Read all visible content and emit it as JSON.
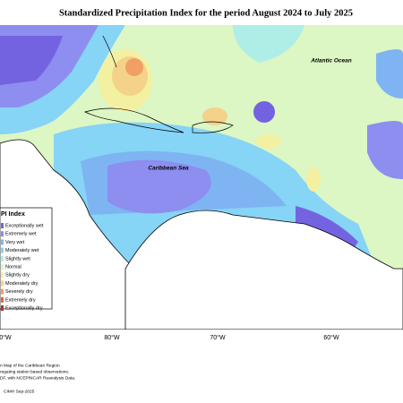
{
  "title": "Standardized Precipitation Index for the period August 2024 to July 2025",
  "map_labels": [
    "Atlantic Ocean",
    "Caribbean Sea"
  ],
  "longitude_labels": [
    "0°W",
    "80°W",
    "70°W",
    "60°W"
  ],
  "legend": {
    "title": "PI Index",
    "items": [
      {
        "name": "Exceptionally wet",
        "color": "#7463e0"
      },
      {
        "name": "Extremely wet",
        "color": "#8d8ef0"
      },
      {
        "name": "Very wet",
        "color": "#7fb4f2"
      },
      {
        "name": "Moderately wet",
        "color": "#86d4f6"
      },
      {
        "name": "Slightly wet",
        "color": "#aeeee6"
      },
      {
        "name": "Normal",
        "color": "#dcf6c4"
      },
      {
        "name": "Slightly dry",
        "color": "#f4f0a2"
      },
      {
        "name": "Moderately dry",
        "color": "#f4d28a"
      },
      {
        "name": "Severely dry",
        "color": "#f0a064"
      },
      {
        "name": "Extremely dry",
        "color": "#e06244"
      },
      {
        "name": "Exceptionally dry",
        "color": "#b03232"
      }
    ]
  },
  "notes": [
    "n Map of the Caribbean Region",
    "regating station based observations,",
    "DF, with NCEP/NCAR Reanalysis Data.",
    "CIMH Sep-2025"
  ]
}
